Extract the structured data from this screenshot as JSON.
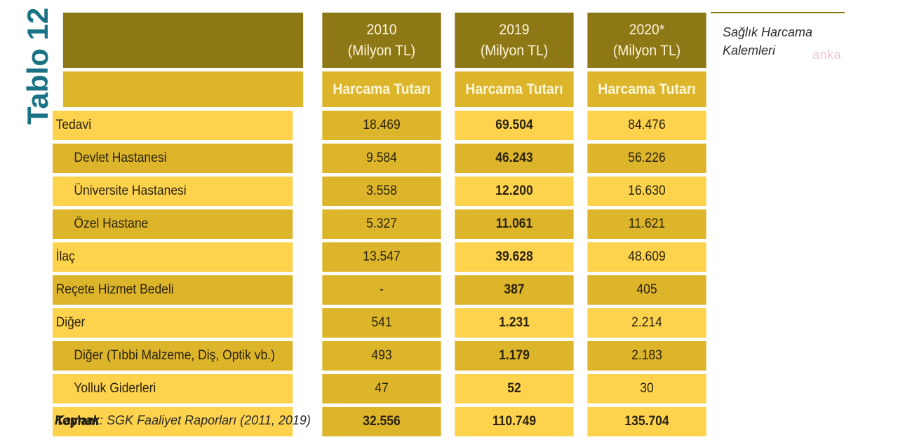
{
  "side_title": "Tablo 12",
  "caption": "Sağlık Harcama Kalemleri",
  "watermark": "anka",
  "columns": [
    {
      "year": "2010",
      "unit": "(Milyon TL)",
      "sub": "Harcama Tutarı"
    },
    {
      "year": "2019",
      "unit": "(Milyon TL)",
      "sub": "Harcama Tutarı"
    },
    {
      "year": "2020*",
      "unit": "(Milyon TL)",
      "sub": "Harcama Tutarı"
    }
  ],
  "rows": [
    {
      "label": "Tedavi",
      "sub": false,
      "values": [
        "18.469",
        "69.504",
        "84.476"
      ]
    },
    {
      "label": "Devlet Hastanesi",
      "sub": true,
      "values": [
        "9.584",
        "46.243",
        "56.226"
      ]
    },
    {
      "label": "Üniversite Hastanesi",
      "sub": true,
      "values": [
        "3.558",
        "12.200",
        "16.630"
      ]
    },
    {
      "label": "Özel Hastane",
      "sub": true,
      "values": [
        "5.327",
        "11.061",
        "11.621"
      ]
    },
    {
      "label": "İlaç",
      "sub": false,
      "values": [
        "13.547",
        "39.628",
        "48.609"
      ]
    },
    {
      "label": "Reçete Hizmet Bedeli",
      "sub": false,
      "values": [
        "-",
        "387",
        "405"
      ]
    },
    {
      "label": "Diğer",
      "sub": false,
      "values": [
        "541",
        "1.231",
        "2.214"
      ]
    },
    {
      "label": "Diğer  (Tıbbi Malzeme, Diş, Optik vb.)",
      "sub": true,
      "values": [
        "493",
        "1.179",
        "2.183"
      ]
    },
    {
      "label": "Yolluk Giderleri",
      "sub": true,
      "values": [
        "47",
        "52",
        "30"
      ]
    },
    {
      "label": "Toplam",
      "sub": false,
      "values": [
        "32.556",
        "110.749",
        "135.704"
      ]
    }
  ],
  "source": {
    "label": "Kaynak",
    "text": ": SGK Faaliyet Raporları (2011, 2019)"
  },
  "colors": {
    "header_dark": "#8e7815",
    "header_mid": "#dcb52a",
    "row_dark": "#ddb52b",
    "row_light": "#fdd34e",
    "title_teal": "#1a7285"
  }
}
